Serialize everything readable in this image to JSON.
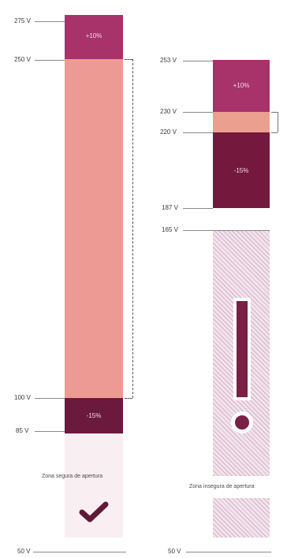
{
  "colors": {
    "tolerance_upper": "#a8326a",
    "tolerance_lower": "#6b1a3d",
    "safe_zone": "#ee9a94",
    "caution_zone": "#eba08f",
    "under_zone_dark": "#74183e",
    "hatch_fill": "#f2e3ec",
    "warning": "#7a1f45",
    "check": "#5f1a37"
  },
  "icons": {
    "safe": "checkmark-icon",
    "unsafe": "exclamation-icon"
  },
  "left_column": {
    "labels": {
      "v275": "275 V",
      "v250": "250 V",
      "v100": "100 V",
      "v85": "85 V",
      "v50": "50 V"
    },
    "plus_tolerance": "+10%",
    "minus_tolerance": "-15%",
    "caption": "Zona segura de apertura"
  },
  "right_column": {
    "labels": {
      "v253": "253 V",
      "v230": "230 V",
      "v220": "220 V",
      "v187": "187 V",
      "v165": "165 V",
      "v50": "50 V"
    },
    "plus_tolerance": "+10%",
    "minus_tolerance": "-15%",
    "caption": "Zona insegura de apertura"
  }
}
